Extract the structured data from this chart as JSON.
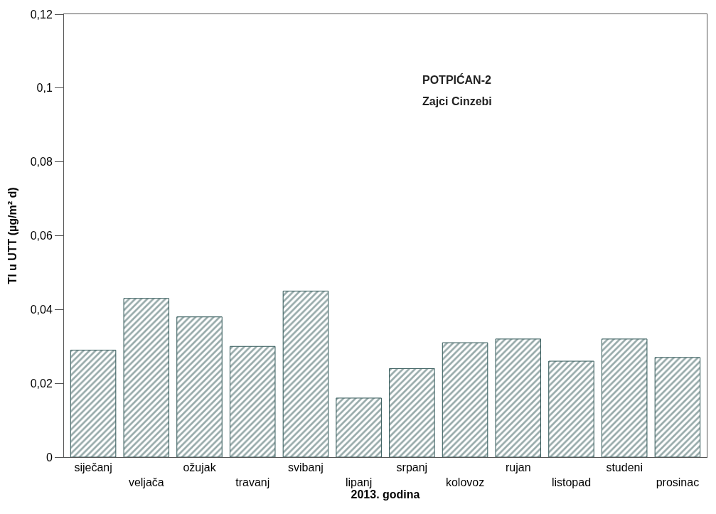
{
  "chart_data": {
    "type": "bar",
    "xlabel": "2013. godina",
    "ylabel": "Tl u UTT (µg/m² d)",
    "annotations": [
      "POTPIĆAN-2",
      "Zajci Cinzebi"
    ],
    "categories": [
      "siječanj",
      "veljača",
      "ožujak",
      "travanj",
      "svibanj",
      "lipanj",
      "srpanj",
      "kolovoz",
      "rujan",
      "listopad",
      "studeni",
      "prosinac"
    ],
    "values": [
      0.029,
      0.043,
      0.038,
      0.03,
      0.045,
      0.016,
      0.024,
      0.031,
      0.032,
      0.026,
      0.032,
      0.027
    ],
    "color": "#2f5656",
    "ylim": [
      0,
      0.12
    ],
    "yticks": [
      {
        "value": 0,
        "label": "0"
      },
      {
        "value": 0.02,
        "label": "0,02"
      },
      {
        "value": 0.04,
        "label": "0,04"
      },
      {
        "value": 0.06,
        "label": "0,06"
      },
      {
        "value": 0.08,
        "label": "0,08"
      },
      {
        "value": 0.1,
        "label": "0,1"
      },
      {
        "value": 0.12,
        "label": "0,12"
      }
    ],
    "tick_labels": "xy"
  }
}
